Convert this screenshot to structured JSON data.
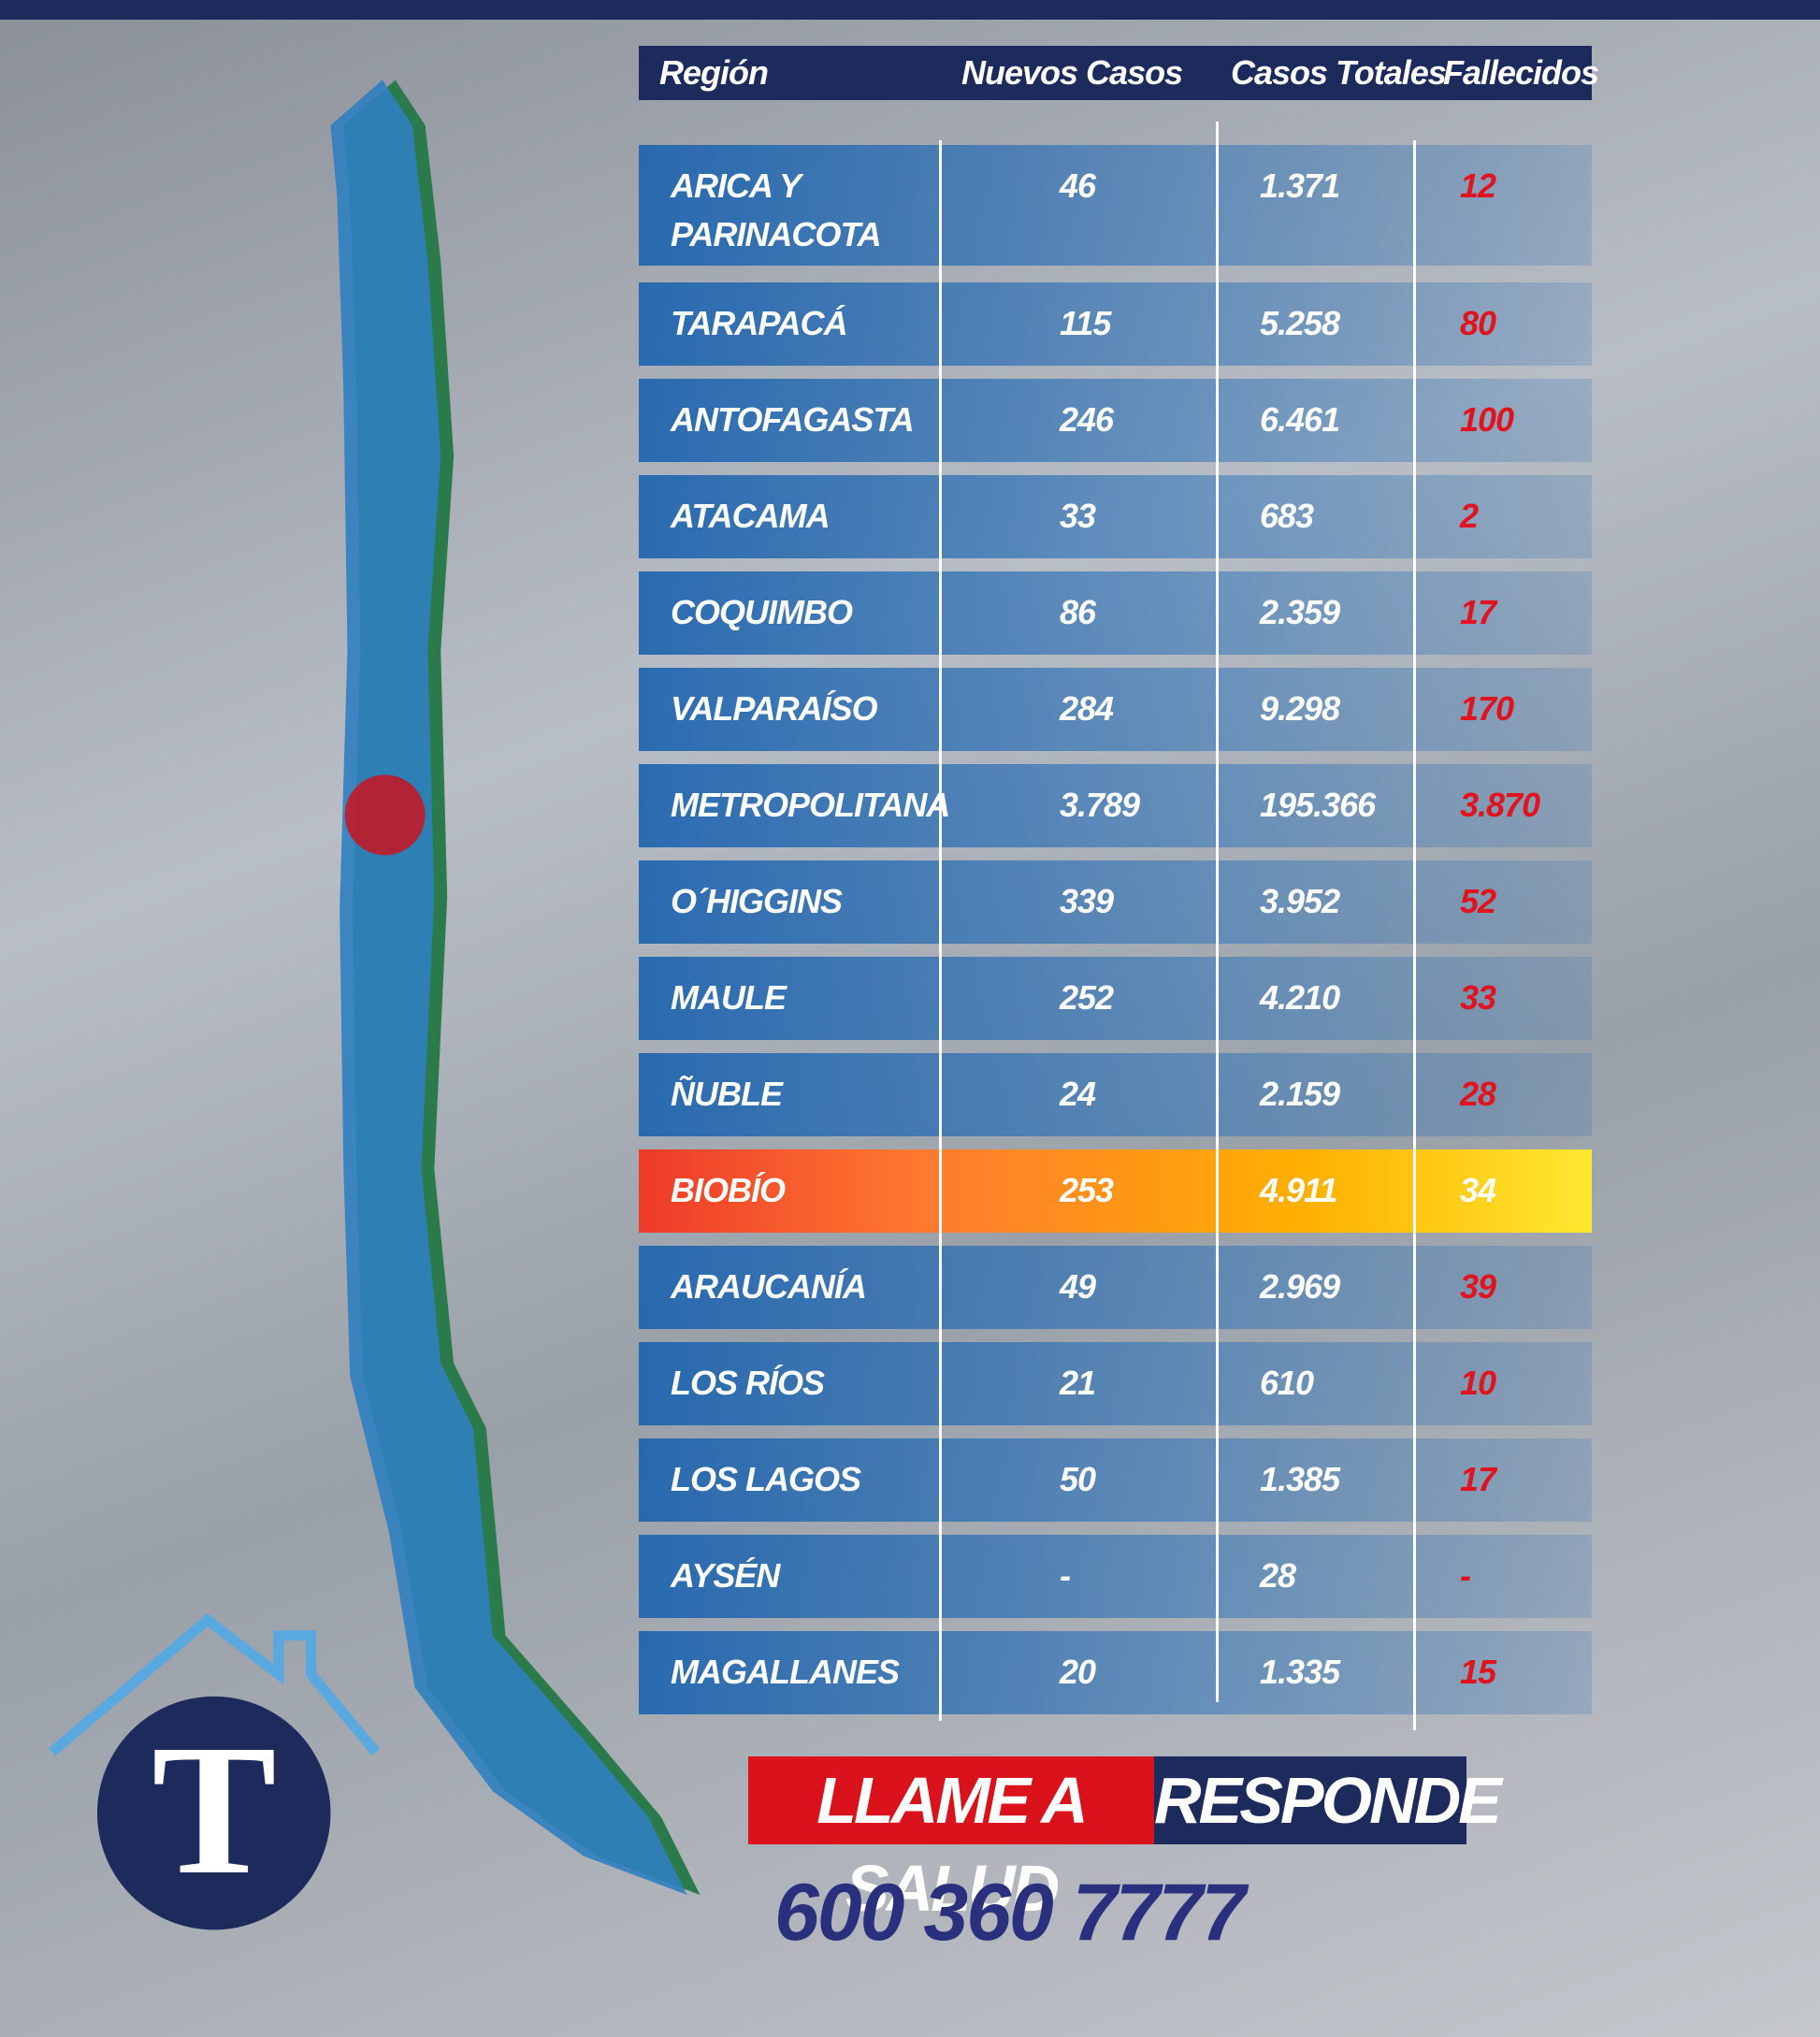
{
  "table": {
    "header": [
      "Región",
      "Nuevos Casos",
      "Casos Totales",
      "Fallecidos"
    ],
    "rows": [
      [
        "ARICA Y PARINACOTA",
        "46",
        "1.371",
        "12"
      ],
      [
        "TARAPACÁ",
        "115",
        "5.258",
        "80"
      ],
      [
        "ANTOFAGASTA",
        "246",
        "6.461",
        "100"
      ],
      [
        "ATACAMA",
        "33",
        "683",
        "2"
      ],
      [
        "COQUIMBO",
        "86",
        "2.359",
        "17"
      ],
      [
        "VALPARAÍSO",
        "284",
        "9.298",
        "170"
      ],
      [
        "METROPOLITANA",
        "3.789",
        "195.366",
        "3.870"
      ],
      [
        "O´HIGGINS",
        "339",
        "3.952",
        "52"
      ],
      [
        "MAULE",
        "252",
        "4.210",
        "33"
      ],
      [
        "ÑUBLE",
        "24",
        "2.159",
        "28"
      ],
      [
        "BIOBÍO",
        "253",
        "4.911",
        "34"
      ],
      [
        "ARAUCANÍA",
        "49",
        "2.969",
        "39"
      ],
      [
        "LOS RÍOS",
        "21",
        "610",
        "10"
      ],
      [
        "LOS LAGOS",
        "50",
        "1.385",
        "17"
      ],
      [
        "AYSÉN",
        "-",
        "28",
        "-"
      ],
      [
        "MAGALLANES",
        "20",
        "1.335",
        "15"
      ]
    ]
  },
  "banner": {
    "left": "LLAME A SALUD",
    "right": "RESPONDE",
    "phone": "600 360 7777"
  },
  "logo": "T"
}
